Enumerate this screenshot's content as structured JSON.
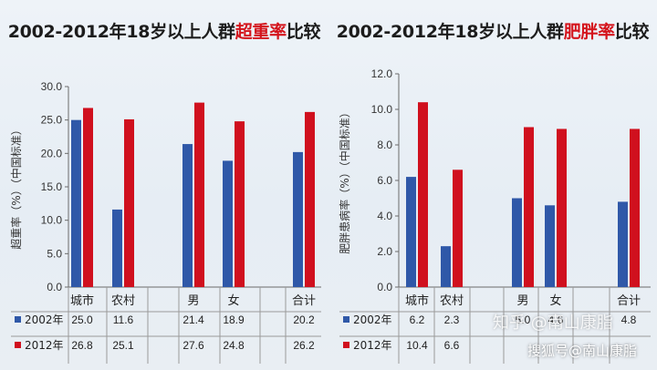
{
  "colors": {
    "series2002": "#2f58a8",
    "series2012": "#d0101e",
    "title_highlight": "#d4141c"
  },
  "chart_data": [
    {
      "type": "bar",
      "title_prefix": "2002-2012年18岁以上人群",
      "title_highlight": "超重率",
      "title_suffix": "比较",
      "ylabel": "超重率（%）（中国标准）",
      "ylim": [
        0,
        30
      ],
      "yticks": [
        "0.0",
        "5.0",
        "10.0",
        "15.0",
        "20.0",
        "25.0",
        "30.0"
      ],
      "categories": [
        "城市",
        "农村",
        "男",
        "女",
        "合计"
      ],
      "series": [
        {
          "name": "2002年",
          "values": [
            25.0,
            11.6,
            21.4,
            18.9,
            20.2
          ],
          "labels": [
            "25.0",
            "11.6",
            "21.4",
            "18.9",
            "20.2"
          ]
        },
        {
          "name": "2012年",
          "values": [
            26.8,
            25.1,
            27.6,
            24.8,
            26.2
          ],
          "labels": [
            "26.8",
            "25.1",
            "27.6",
            "24.8",
            "26.2"
          ]
        }
      ]
    },
    {
      "type": "bar",
      "title_prefix": "2002-2012年18岁以上人群",
      "title_highlight": "肥胖率",
      "title_suffix": "比较",
      "ylabel": "肥胖患病率（%）（中国标准）",
      "ylim": [
        0,
        12
      ],
      "yticks": [
        "0.0",
        "2.0",
        "4.0",
        "6.0",
        "8.0",
        "10.0",
        "12.0"
      ],
      "categories": [
        "城市",
        "农村",
        "男",
        "女",
        "合计"
      ],
      "series": [
        {
          "name": "2002年",
          "values": [
            6.2,
            2.3,
            5.0,
            4.6,
            4.8
          ],
          "labels": [
            "6.2",
            "2.3",
            "5.0",
            "4.6",
            "4.8"
          ]
        },
        {
          "name": "2012年",
          "values": [
            10.4,
            6.6,
            9.0,
            8.9,
            8.9
          ],
          "labels": [
            "10.4",
            "6.6",
            "",
            "",
            ""
          ]
        }
      ]
    }
  ],
  "watermark": {
    "site": "知乎 @南山康脂",
    "source": "搜狐号@南山康脂"
  }
}
